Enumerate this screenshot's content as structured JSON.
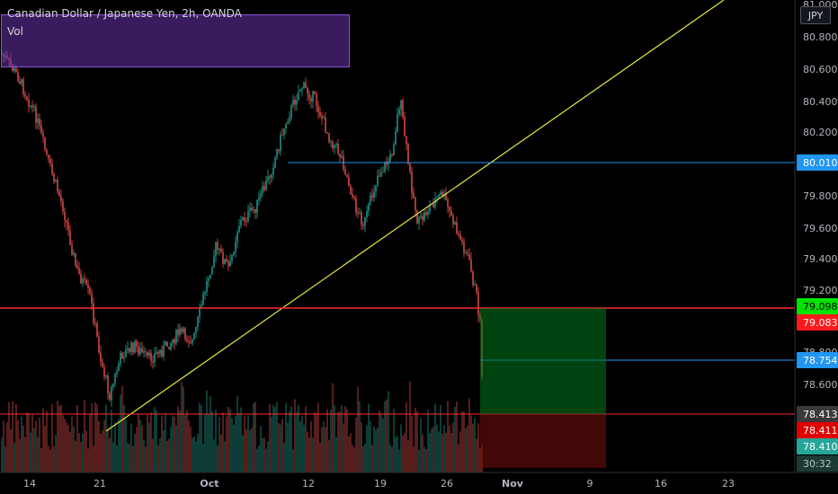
{
  "header": {
    "title": "Canadian Dollar / Japanese Yen, 2h, OANDA",
    "indicator": "Vol",
    "currency_button": "JPY"
  },
  "price_axis": {
    "ticks": [
      "81.000",
      "80.800",
      "80.600",
      "80.400",
      "80.200",
      "79.800",
      "79.600",
      "79.400",
      "79.200",
      "78.800",
      "78.600"
    ],
    "badges": [
      {
        "label": "80.010",
        "color": "#2196f3",
        "text_color": "#ffffff"
      },
      {
        "label": "79.098",
        "color": "#00e400",
        "text_color": "#000000"
      },
      {
        "label": "79.083",
        "color": "#ff1a1a",
        "text_color": "#ffffff"
      },
      {
        "label": "78.754",
        "color": "#2196f3",
        "text_color": "#ffffff"
      },
      {
        "label": "78.413",
        "color": "#3a3a3a",
        "text_color": "#ffffff"
      },
      {
        "label": "78.411",
        "color": "#e00000",
        "text_color": "#ffffff"
      },
      {
        "label": "78.410",
        "color": "#26a69a",
        "text_color": "#ffffff"
      },
      {
        "label": "30:32",
        "color": "#1b3a35",
        "text_color": "#b7c4c2"
      }
    ]
  },
  "time_axis": {
    "ticks": [
      "14",
      "21",
      "Oct",
      "12",
      "19",
      "26",
      "Nov",
      "9",
      "16",
      "23"
    ],
    "bold": [
      "Oct",
      "Nov"
    ]
  },
  "colors": {
    "background": "#000000",
    "up_candle": "#26a69a",
    "down_candle": "#ef5350",
    "trendline": "#e6e63c",
    "horizontal_blue": "#2196f3",
    "horizontal_red": "#ff2a2a"
  }
}
